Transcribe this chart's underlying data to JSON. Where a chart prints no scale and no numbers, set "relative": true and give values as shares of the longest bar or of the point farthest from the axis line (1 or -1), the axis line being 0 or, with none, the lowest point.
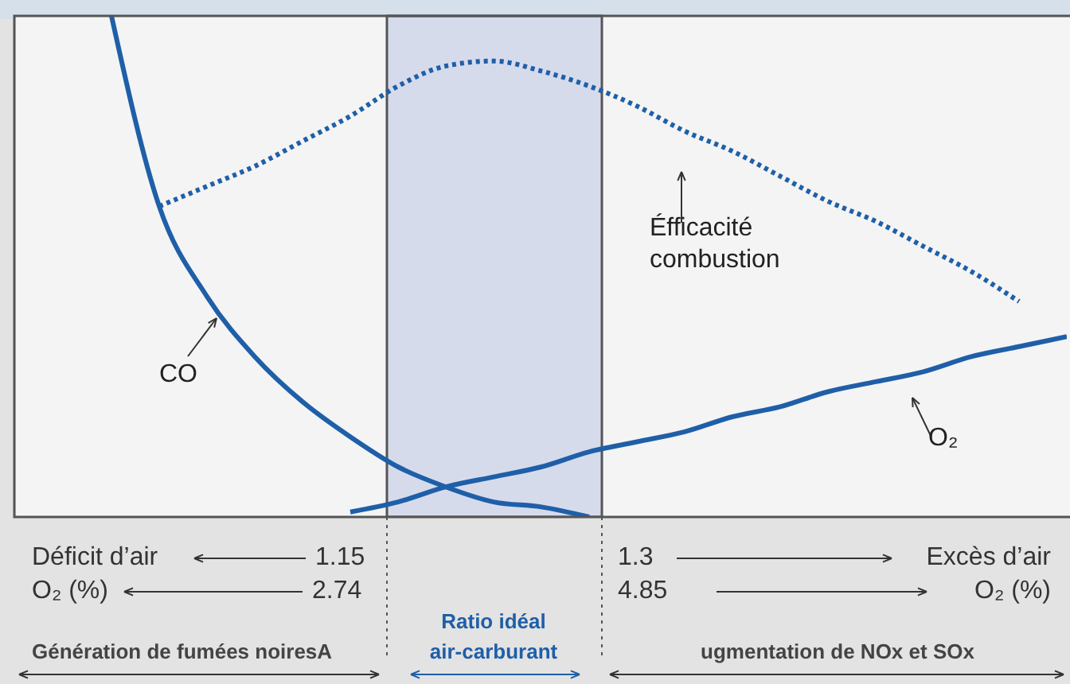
{
  "chart_data": {
    "type": "line",
    "relative": true,
    "categories": [
      null,
      null,
      null,
      null,
      null,
      null,
      null,
      null,
      null,
      null,
      null,
      null,
      null,
      null,
      null,
      null,
      null,
      null,
      null,
      null,
      null,
      null,
      null
    ],
    "series": [
      {
        "name": "CO",
        "color": "#1f5fa8",
        "values": [
          null,
          null,
          1.0,
          0.62,
          0.44,
          0.32,
          0.23,
          0.16,
          0.1,
          0.06,
          0.03,
          0.02,
          0.0,
          null,
          null,
          null,
          null,
          null,
          null,
          null,
          null,
          null,
          null
        ]
      },
      {
        "name": "Éfficacité\ncombustion",
        "color": "#1f5fa8",
        "line_style": "dotted",
        "values": [
          null,
          null,
          null,
          0.62,
          0.66,
          0.7,
          0.75,
          0.8,
          0.86,
          0.9,
          0.91,
          0.89,
          0.86,
          0.82,
          0.77,
          0.73,
          0.68,
          0.63,
          0.59,
          0.54,
          0.49,
          0.43,
          null
        ]
      },
      {
        "name": "O₂",
        "color": "#1f5fa8",
        "values": [
          null,
          null,
          null,
          null,
          null,
          null,
          null,
          0.01,
          0.03,
          0.06,
          0.08,
          0.1,
          0.13,
          0.15,
          0.17,
          0.2,
          0.22,
          0.25,
          0.27,
          0.29,
          0.32,
          0.34,
          0.36
        ]
      }
    ],
    "line_style": "solid",
    "grid": false,
    "legend": false,
    "annotations": [
      "Déficit d’air",
      "1.15",
      "O₂ (%)",
      "2.74",
      "1.3",
      "Excès d’air",
      "4.85",
      "O₂ (%)",
      "Génération de fumées noiresA",
      "Ratio idéal\nair-carburant",
      "ugmentation de NOx et SOx"
    ]
  }
}
